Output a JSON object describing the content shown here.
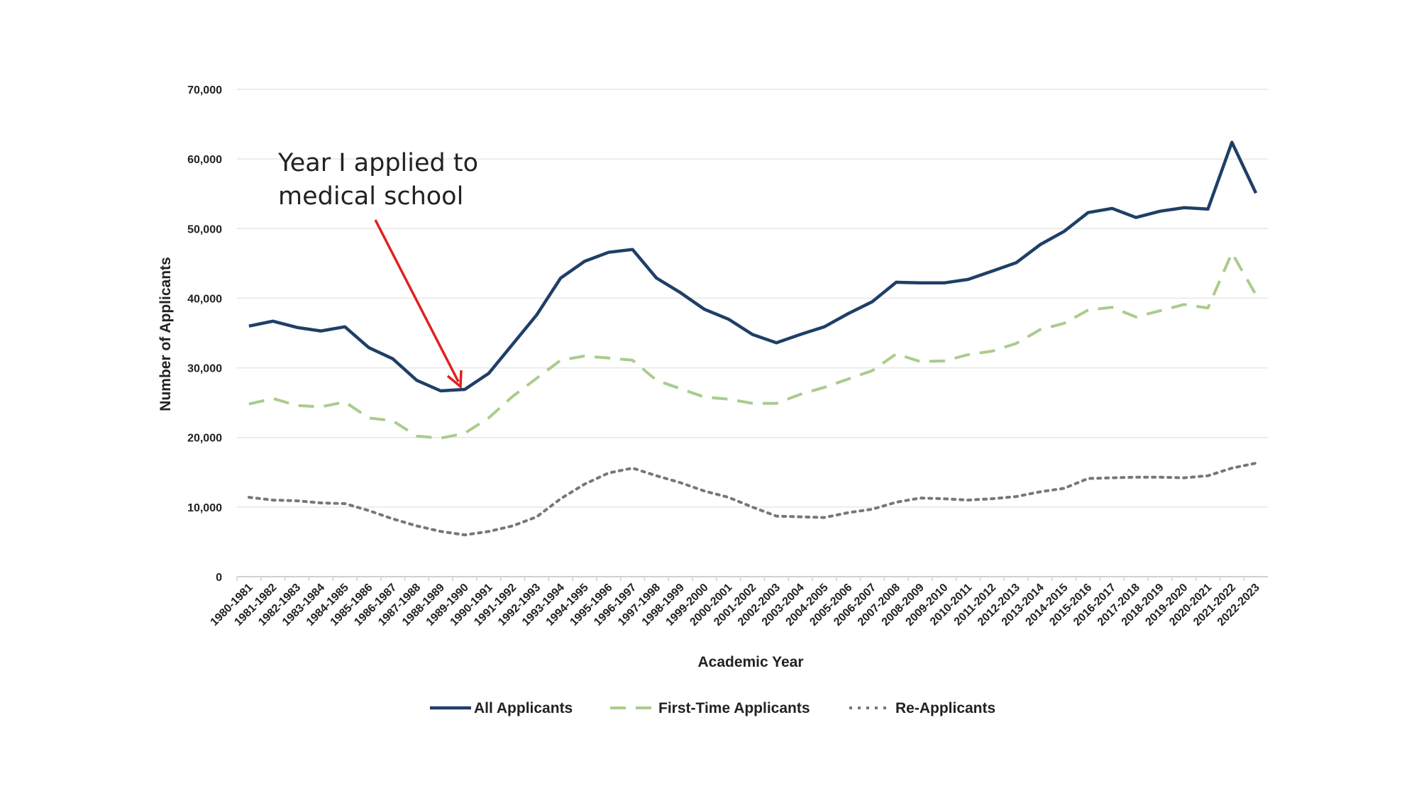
{
  "chart_data": {
    "type": "line",
    "title": "",
    "xlabel": "Academic Year",
    "ylabel": "Number of Applicants",
    "ylim": [
      0,
      70000
    ],
    "yticks": [
      0,
      10000,
      20000,
      30000,
      40000,
      50000,
      60000,
      70000
    ],
    "ytick_labels": [
      "0",
      "10,000",
      "20,000",
      "30,000",
      "40,000",
      "50,000",
      "60,000",
      "70,000"
    ],
    "grid": true,
    "legend_position": "bottom",
    "categories": [
      "1980-1981",
      "1981-1982",
      "1982-1983",
      "1983-1984",
      "1984-1985",
      "1985-1986",
      "1986-1987",
      "1987-1988",
      "1988-1989",
      "1989-1990",
      "1990-1991",
      "1991-1992",
      "1992-1993",
      "1993-1994",
      "1994-1995",
      "1995-1996",
      "1996-1997",
      "1997-1998",
      "1998-1999",
      "1999-2000",
      "2000-2001",
      "2001-2002",
      "2002-2003",
      "2003-2004",
      "2004-2005",
      "2005-2006",
      "2006-2007",
      "2007-2008",
      "2008-2009",
      "2009-2010",
      "2010-2011",
      "2011-2012",
      "2012-2013",
      "2013-2014",
      "2014-2015",
      "2015-2016",
      "2016-2017",
      "2017-2018",
      "2018-2019",
      "2019-2020",
      "2020-2021",
      "2021-2022",
      "2022-2023"
    ],
    "series": [
      {
        "name": "All Applicants",
        "color": "#1f3f66",
        "style": "solid",
        "values": [
          36000,
          36700,
          35800,
          35300,
          35900,
          32900,
          31300,
          28200,
          26700,
          26900,
          29200,
          33400,
          37600,
          42900,
          45300,
          46600,
          47000,
          42900,
          40800,
          38400,
          37000,
          34800,
          33600,
          34800,
          35900,
          37800,
          39500,
          42300,
          42200,
          42200,
          42700,
          43900,
          45100,
          47700,
          49600,
          52300,
          52900,
          51600,
          52500,
          53000,
          52800,
          62400,
          55100
        ]
      },
      {
        "name": "First-Time Applicants",
        "color": "#a9cc8c",
        "style": "dashed",
        "values": [
          24800,
          25600,
          24600,
          24400,
          25100,
          22800,
          22400,
          20200,
          19900,
          20600,
          22800,
          25900,
          28500,
          31100,
          31700,
          31400,
          31100,
          28200,
          27000,
          25800,
          25500,
          24900,
          24900,
          26200,
          27200,
          28400,
          29600,
          32000,
          30900,
          31000,
          31900,
          32400,
          33500,
          35500,
          36400,
          38300,
          38700,
          37300,
          38200,
          39100,
          38600,
          46500,
          40500
        ]
      },
      {
        "name": "Re-Applicants",
        "color": "#777777",
        "style": "dotted",
        "values": [
          11400,
          11000,
          10900,
          10600,
          10500,
          9500,
          8300,
          7300,
          6500,
          6000,
          6500,
          7300,
          8600,
          11200,
          13300,
          14900,
          15600,
          14500,
          13500,
          12300,
          11400,
          10000,
          8700,
          8600,
          8500,
          9200,
          9700,
          10700,
          11300,
          11200,
          11000,
          11200,
          11500,
          12200,
          12700,
          14100,
          14200,
          14300,
          14300,
          14200,
          14500,
          15600,
          16300
        ]
      }
    ],
    "annotations": [
      {
        "text_line1": "Year I applied to",
        "text_line2": "medical school",
        "points_to": "1989-1990",
        "arrow_color": "#e02020"
      }
    ]
  }
}
